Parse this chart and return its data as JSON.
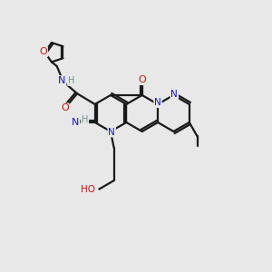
{
  "bg_color": "#e8e8e8",
  "bond_color": "#1a1a1a",
  "bond_width": 1.6,
  "N_color": "#1414cc",
  "O_color": "#cc1414",
  "H_color": "#6e9090",
  "C_color": "#1a1a1a",
  "figsize": [
    3.0,
    3.0
  ],
  "dpi": 100,
  "xlim": [
    0,
    10
  ],
  "ylim": [
    0,
    10
  ],
  "ring_r": 0.68,
  "furan_r": 0.38
}
